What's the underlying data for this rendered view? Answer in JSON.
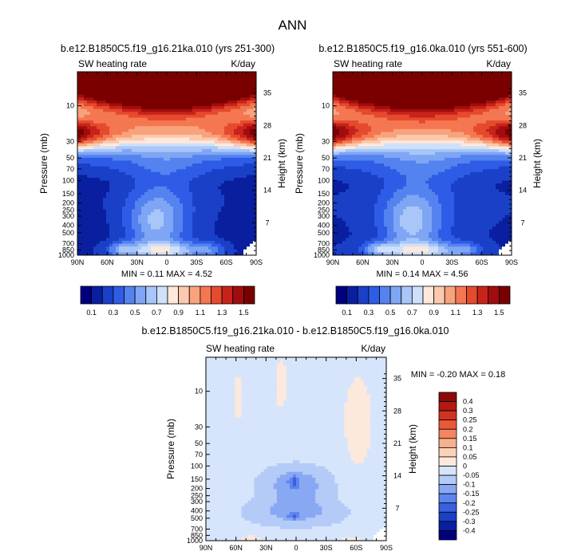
{
  "figure_title": "ANN",
  "colors": {
    "full_field": [
      "#00007f",
      "#0a1fa0",
      "#1a40c8",
      "#2f5ce6",
      "#5483f0",
      "#7ea6f5",
      "#a8c6f8",
      "#cfe0fb",
      "#fde8da",
      "#fbc9ad",
      "#f8a37c",
      "#f47752",
      "#e64a2d",
      "#c8231a",
      "#a10d0e",
      "#7a0000"
    ],
    "diff_field": [
      "#00007f",
      "#0a1fa0",
      "#1a40c8",
      "#3a5fe0",
      "#5e85ef",
      "#89a8f4",
      "#b4cbf8",
      "#d6e5fb",
      "#fce9dc",
      "#fbd1b8",
      "#f8b08e",
      "#f48661",
      "#ea5a38",
      "#d23320",
      "#b01a10",
      "#8b0a08"
    ]
  },
  "chart_data": [
    {
      "type": "heatmap",
      "title": "b.e12.B1850C5.f19_g16.21ka.010 (yrs 251-300)",
      "left_label": "SW heating rate",
      "right_label": "K/day",
      "xlabel": "",
      "ylabel": "Pressure (mb)",
      "ylabel_right": "Height (km)",
      "x_ticks": [
        "90N",
        "60N",
        "30N",
        "0",
        "30S",
        "60S",
        "90S"
      ],
      "y_ticks": [
        "10",
        "30",
        "50",
        "70",
        "100",
        "150",
        "200",
        "250",
        "300",
        "400",
        "500",
        "700",
        "850",
        "1000"
      ],
      "y_tick_values": [
        10,
        30,
        50,
        70,
        100,
        150,
        200,
        250,
        300,
        400,
        500,
        700,
        850,
        1000
      ],
      "y_range_mb": [
        3.5,
        1000
      ],
      "height_ticks": [
        "35",
        "28",
        "21",
        "14",
        "7"
      ],
      "height_tick_values": [
        35,
        28,
        21,
        14,
        7
      ],
      "stats_text": "MIN =  0.11   MAX =  4.52",
      "min": 0.11,
      "max": 4.52,
      "colorbar_labels": [
        "0.1",
        "0.3",
        "0.5",
        "0.7",
        "0.9",
        "1.1",
        "1.3",
        "1.5"
      ],
      "colorbar_levels": [
        0.1,
        0.2,
        0.3,
        0.4,
        0.5,
        0.6,
        0.7,
        0.8,
        0.9,
        1.0,
        1.1,
        1.2,
        1.3,
        1.4,
        1.5
      ]
    },
    {
      "type": "heatmap",
      "title": "b.e12.B1850C5.f19_g16.0ka.010 (yrs 551-600)",
      "left_label": "SW heating rate",
      "right_label": "K/day",
      "xlabel": "",
      "ylabel": "Pressure (mb)",
      "ylabel_right": "Height (km)",
      "x_ticks": [
        "90N",
        "60N",
        "30N",
        "0",
        "30S",
        "60S",
        "90S"
      ],
      "y_ticks": [
        "10",
        "30",
        "50",
        "70",
        "100",
        "150",
        "200",
        "250",
        "300",
        "400",
        "500",
        "700",
        "850",
        "1000"
      ],
      "y_tick_values": [
        10,
        30,
        50,
        70,
        100,
        150,
        200,
        250,
        300,
        400,
        500,
        700,
        850,
        1000
      ],
      "y_range_mb": [
        3.5,
        1000
      ],
      "height_ticks": [
        "35",
        "28",
        "21",
        "14",
        "7"
      ],
      "height_tick_values": [
        35,
        28,
        21,
        14,
        7
      ],
      "stats_text": "MIN =  0.14   MAX =  4.56",
      "min": 0.14,
      "max": 4.56,
      "colorbar_labels": [
        "0.1",
        "0.3",
        "0.5",
        "0.7",
        "0.9",
        "1.1",
        "1.3",
        "1.5"
      ],
      "colorbar_levels": [
        0.1,
        0.2,
        0.3,
        0.4,
        0.5,
        0.6,
        0.7,
        0.8,
        0.9,
        1.0,
        1.1,
        1.2,
        1.3,
        1.4,
        1.5
      ]
    },
    {
      "type": "heatmap",
      "title": "b.e12.B1850C5.f19_g16.21ka.010 - b.e12.B1850C5.f19_g16.0ka.010",
      "left_label": "SW heating rate",
      "right_label": "K/day",
      "xlabel": "",
      "ylabel": "Pressure (mb)",
      "ylabel_right": "Height (km)",
      "x_ticks": [
        "90N",
        "60N",
        "30N",
        "0",
        "30S",
        "60S",
        "90S"
      ],
      "y_ticks": [
        "10",
        "30",
        "50",
        "70",
        "100",
        "150",
        "200",
        "250",
        "300",
        "400",
        "500",
        "700",
        "850",
        "1000"
      ],
      "y_tick_values": [
        10,
        30,
        50,
        70,
        100,
        150,
        200,
        250,
        300,
        400,
        500,
        700,
        850,
        1000
      ],
      "y_range_mb": [
        3.5,
        1000
      ],
      "height_ticks": [
        "35",
        "28",
        "21",
        "14",
        "7"
      ],
      "height_tick_values": [
        35,
        28,
        21,
        14,
        7
      ],
      "stats_text": "MIN =  -0.20   MAX =   0.18",
      "min": -0.2,
      "max": 0.18,
      "colorbar_labels": [
        "0.4",
        "0.3",
        "0.25",
        "0.2",
        "0.15",
        "0.1",
        "0.05",
        "0",
        "-0.05",
        "-0.1",
        "-0.15",
        "-0.2",
        "-0.25",
        "-0.3",
        "-0.4"
      ],
      "colorbar_levels": [
        0.4,
        0.3,
        0.25,
        0.2,
        0.15,
        0.1,
        0.05,
        0,
        -0.05,
        -0.1,
        -0.15,
        -0.2,
        -0.25,
        -0.3,
        -0.4
      ]
    }
  ]
}
